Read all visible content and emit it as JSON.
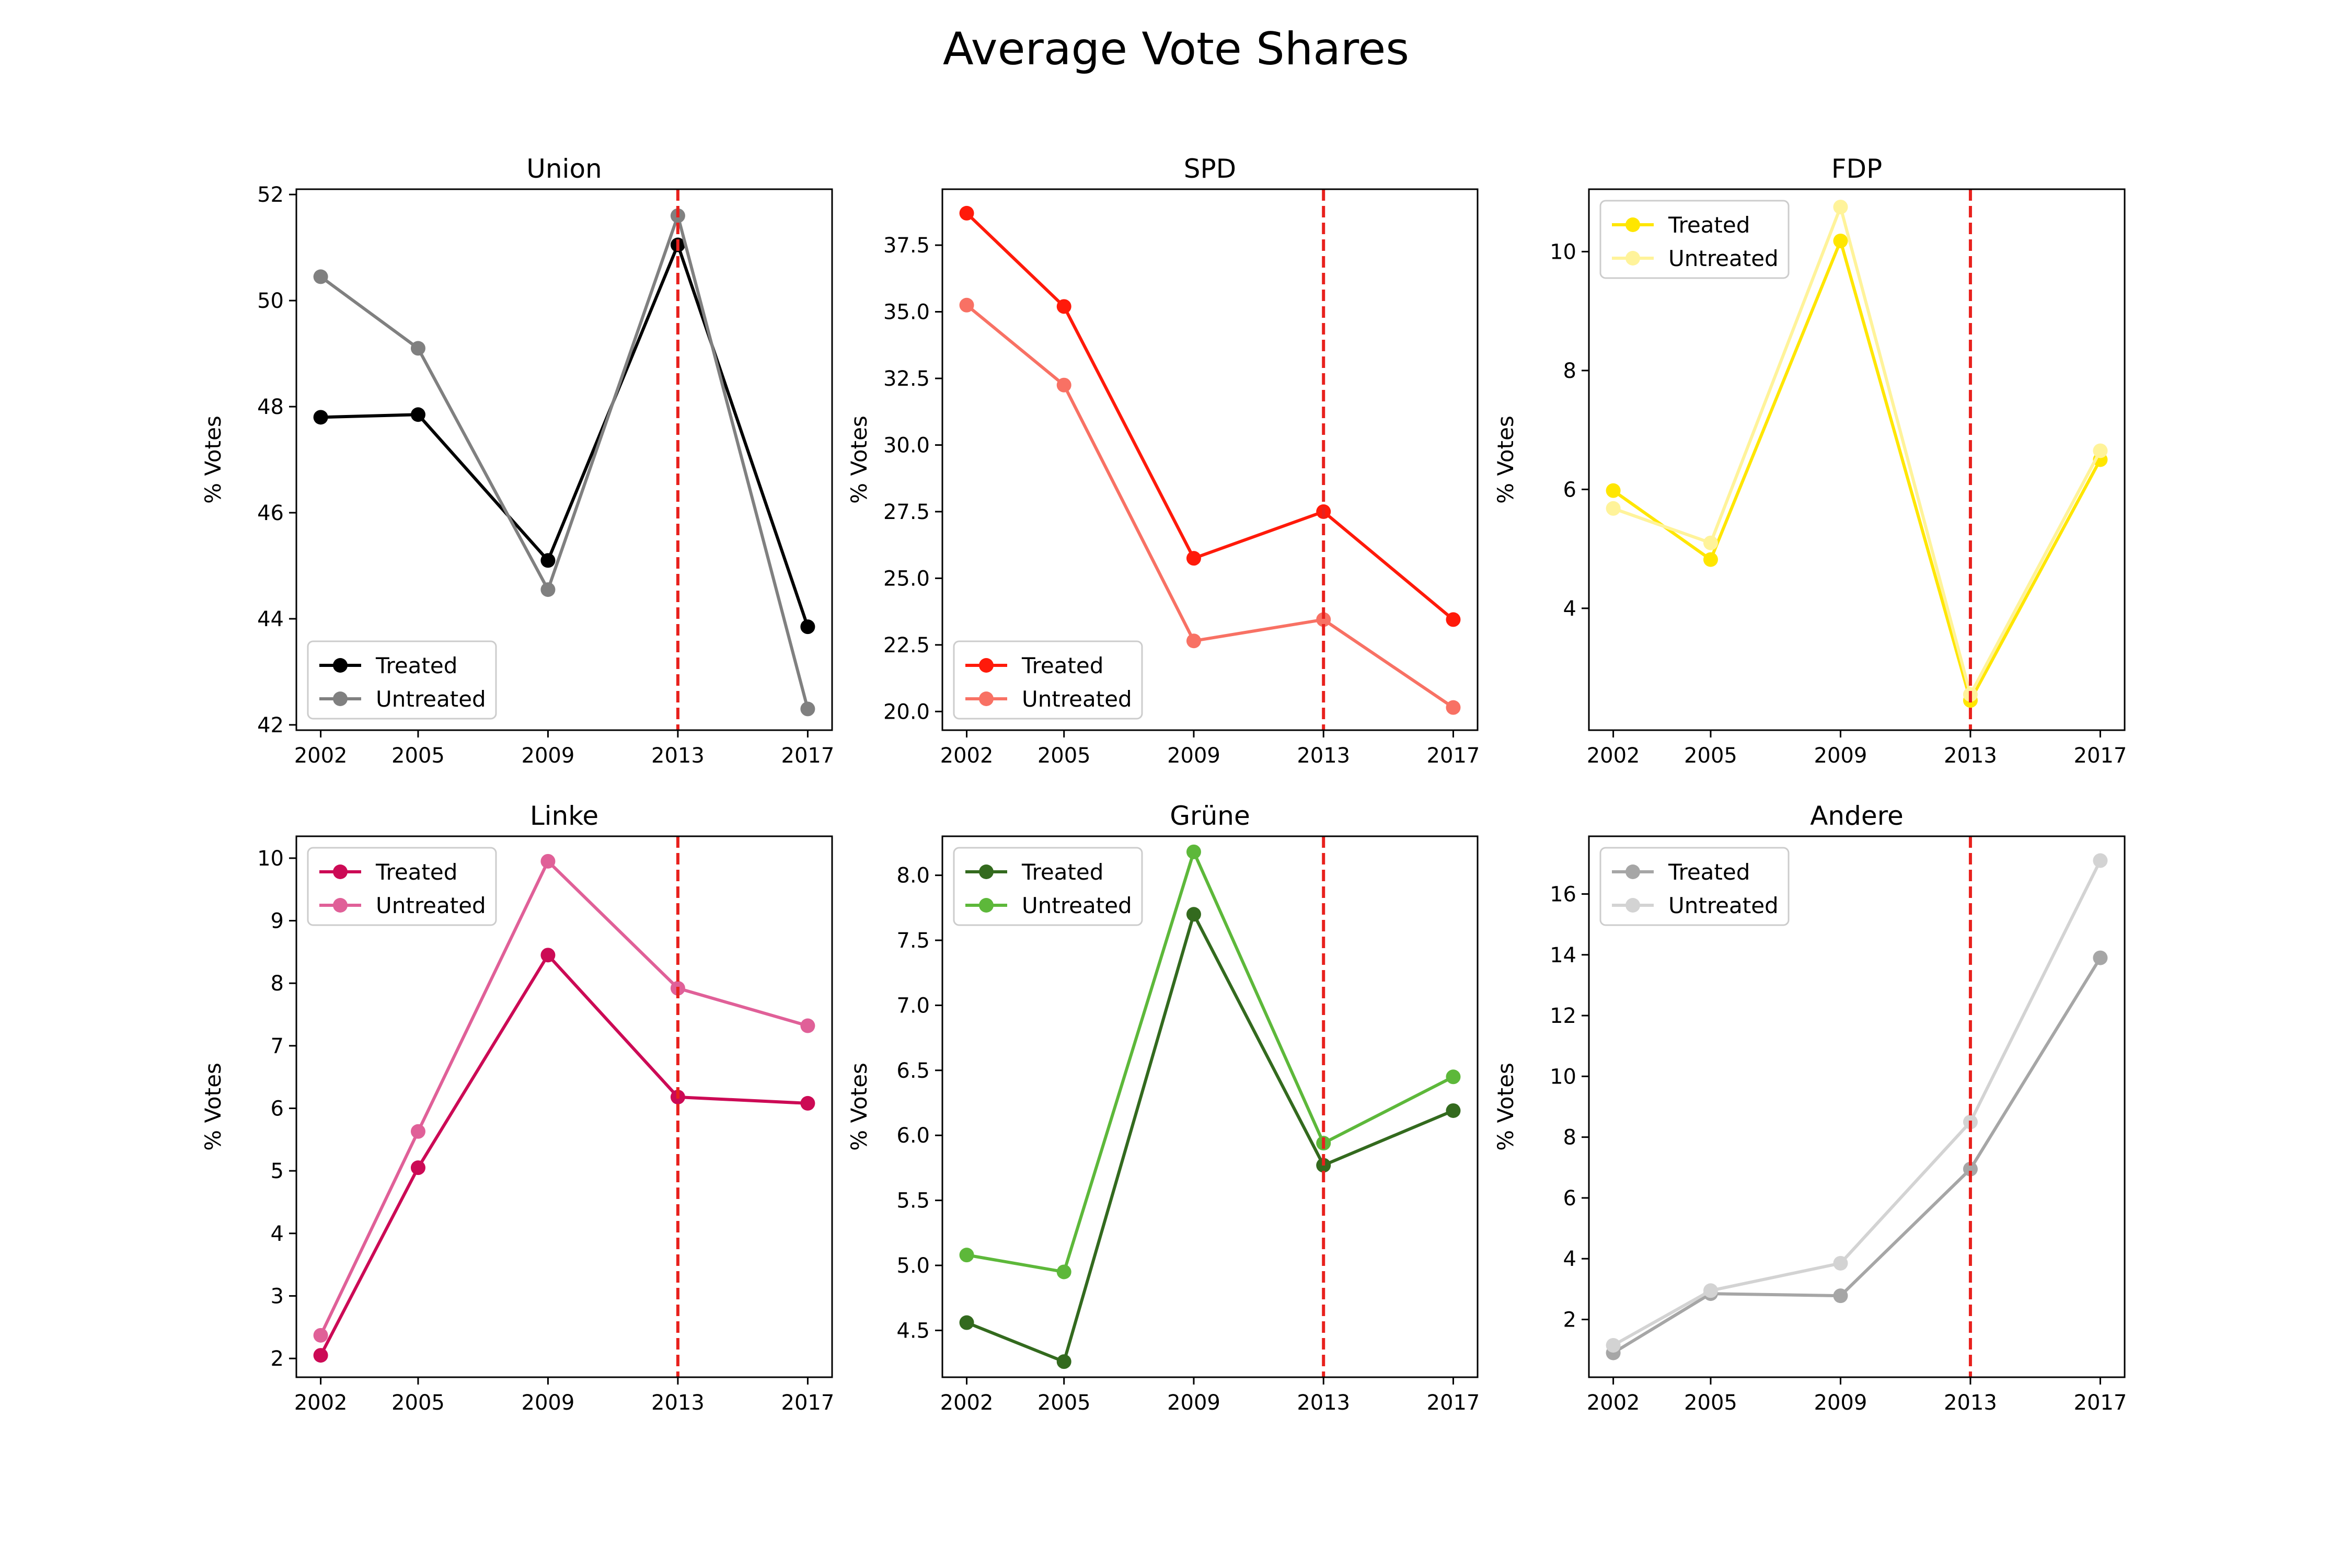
{
  "title": "Average Vote Shares",
  "chart_data": [
    {
      "type": "line",
      "title": "Union",
      "ylabel": "% Votes",
      "x": [
        2002,
        2005,
        2009,
        2013,
        2017
      ],
      "xticks": [
        "2002",
        "2005",
        "2009",
        "2013",
        "2017"
      ],
      "ylim": [
        41.9,
        52.1
      ],
      "yticks": [
        42,
        44,
        46,
        48,
        50,
        52
      ],
      "yticklabels": [
        "42",
        "44",
        "46",
        "48",
        "50",
        "52"
      ],
      "treatment_year": 2013,
      "legend_position": "lower-left",
      "series": [
        {
          "name": "Treated",
          "color": "#000000",
          "values": [
            47.8,
            47.85,
            45.1,
            51.05,
            43.85
          ]
        },
        {
          "name": "Untreated",
          "color": "#808080",
          "values": [
            50.45,
            49.1,
            44.55,
            51.6,
            42.3
          ]
        }
      ]
    },
    {
      "type": "line",
      "title": "SPD",
      "ylabel": "% Votes",
      "x": [
        2002,
        2005,
        2009,
        2013,
        2017
      ],
      "xticks": [
        "2002",
        "2005",
        "2009",
        "2013",
        "2017"
      ],
      "ylim": [
        19.3,
        39.6
      ],
      "yticks": [
        20.0,
        22.5,
        25.0,
        27.5,
        30.0,
        32.5,
        35.0,
        37.5
      ],
      "yticklabels": [
        "20.0",
        "22.5",
        "25.0",
        "27.5",
        "30.0",
        "32.5",
        "35.0",
        "37.5"
      ],
      "treatment_year": 2013,
      "legend_position": "lower-left",
      "series": [
        {
          "name": "Treated",
          "color": "#ff1a0a",
          "values": [
            38.7,
            35.2,
            25.75,
            27.5,
            23.45
          ]
        },
        {
          "name": "Untreated",
          "color": "#f87164",
          "values": [
            35.25,
            32.25,
            22.65,
            23.45,
            20.15
          ]
        }
      ]
    },
    {
      "type": "line",
      "title": "FDP",
      "ylabel": "% Votes",
      "x": [
        2002,
        2005,
        2009,
        2013,
        2017
      ],
      "xticks": [
        "2002",
        "2005",
        "2009",
        "2013",
        "2017"
      ],
      "ylim": [
        1.95,
        11.05
      ],
      "yticks": [
        4,
        6,
        8,
        10
      ],
      "yticklabels": [
        "4",
        "6",
        "8",
        "10"
      ],
      "treatment_year": 2013,
      "legend_position": "upper-left",
      "series": [
        {
          "name": "Treated",
          "color": "#ffe600",
          "values": [
            5.98,
            4.82,
            10.18,
            2.45,
            6.5
          ]
        },
        {
          "name": "Untreated",
          "color": "#fff39a",
          "values": [
            5.68,
            5.1,
            10.75,
            2.55,
            6.65
          ]
        }
      ]
    },
    {
      "type": "line",
      "title": "Linke",
      "ylabel": "% Votes",
      "x": [
        2002,
        2005,
        2009,
        2013,
        2017
      ],
      "xticks": [
        "2002",
        "2005",
        "2009",
        "2013",
        "2017"
      ],
      "ylim": [
        1.7,
        10.35
      ],
      "yticks": [
        2,
        3,
        4,
        5,
        6,
        7,
        8,
        9,
        10
      ],
      "yticklabels": [
        "2",
        "3",
        "4",
        "5",
        "6",
        "7",
        "8",
        "9",
        "10"
      ],
      "treatment_year": 2013,
      "legend_position": "upper-left",
      "series": [
        {
          "name": "Treated",
          "color": "#cc0a55",
          "values": [
            2.05,
            5.05,
            8.45,
            6.18,
            6.08
          ]
        },
        {
          "name": "Untreated",
          "color": "#e06098",
          "values": [
            2.37,
            5.63,
            9.95,
            7.92,
            7.32
          ]
        }
      ]
    },
    {
      "type": "line",
      "title": "Grüne",
      "ylabel": "% Votes",
      "x": [
        2002,
        2005,
        2009,
        2013,
        2017
      ],
      "xticks": [
        "2002",
        "2005",
        "2009",
        "2013",
        "2017"
      ],
      "ylim": [
        4.14,
        8.3
      ],
      "yticks": [
        4.5,
        5.0,
        5.5,
        6.0,
        6.5,
        7.0,
        7.5,
        8.0
      ],
      "yticklabels": [
        "4.5",
        "5.0",
        "5.5",
        "6.0",
        "6.5",
        "7.0",
        "7.5",
        "8.0"
      ],
      "treatment_year": 2013,
      "legend_position": "upper-left",
      "series": [
        {
          "name": "Treated",
          "color": "#336a1e",
          "values": [
            4.56,
            4.26,
            7.7,
            5.77,
            6.19
          ]
        },
        {
          "name": "Untreated",
          "color": "#5db83a",
          "values": [
            5.08,
            4.95,
            8.18,
            5.94,
            6.45
          ]
        }
      ]
    },
    {
      "type": "line",
      "title": "Andere",
      "ylabel": "% Votes",
      "x": [
        2002,
        2005,
        2009,
        2013,
        2017
      ],
      "xticks": [
        "2002",
        "2005",
        "2009",
        "2013",
        "2017"
      ],
      "ylim": [
        0.1,
        17.9
      ],
      "yticks": [
        2,
        4,
        6,
        8,
        10,
        12,
        14,
        16
      ],
      "yticklabels": [
        "2",
        "4",
        "6",
        "8",
        "10",
        "12",
        "14",
        "16"
      ],
      "treatment_year": 2013,
      "legend_position": "upper-left",
      "series": [
        {
          "name": "Treated",
          "color": "#a6a6a6",
          "values": [
            0.9,
            2.85,
            2.78,
            6.95,
            13.9
          ]
        },
        {
          "name": "Untreated",
          "color": "#d3d3d3",
          "values": [
            1.15,
            2.95,
            3.85,
            8.5,
            17.1
          ]
        }
      ]
    }
  ]
}
